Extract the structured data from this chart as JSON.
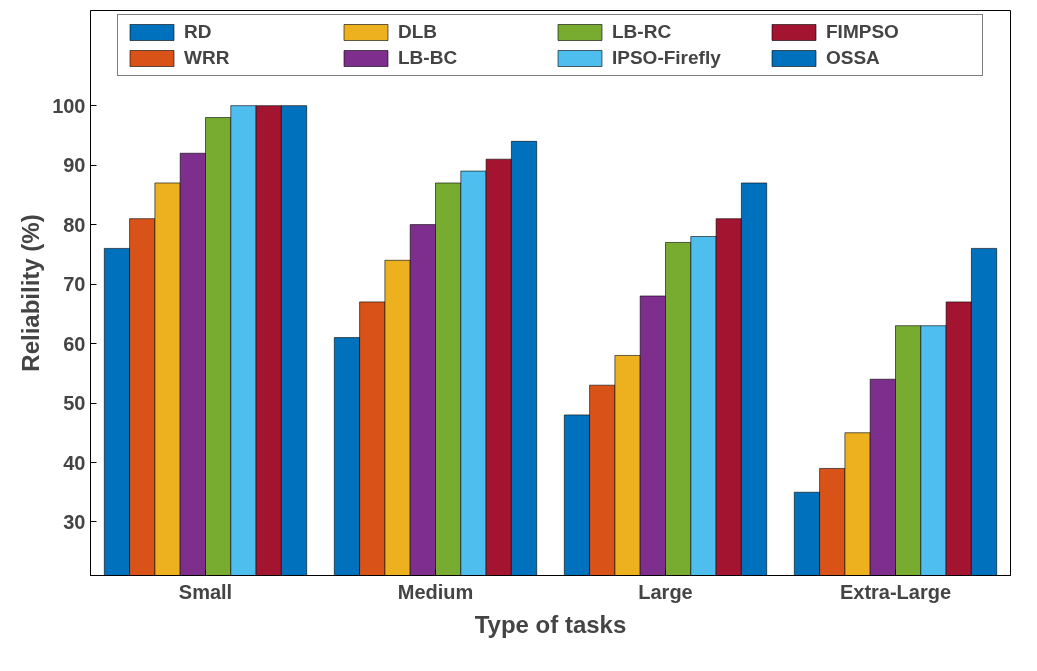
{
  "chart_data": {
    "type": "bar",
    "xlabel": "Type of tasks",
    "ylabel": "Reliability (%)",
    "categories": [
      "Small",
      "Medium",
      "Large",
      "Extra-Large"
    ],
    "series": [
      {
        "name": "RD",
        "color": "#0072bd",
        "values": [
          76,
          61,
          48,
          35
        ]
      },
      {
        "name": "WRR",
        "color": "#d95319",
        "values": [
          81,
          67,
          53,
          39
        ]
      },
      {
        "name": "DLB",
        "color": "#edb120",
        "values": [
          87,
          74,
          58,
          45
        ]
      },
      {
        "name": "LB-BC",
        "color": "#7e2f8e",
        "values": [
          92,
          80,
          68,
          54
        ]
      },
      {
        "name": "LB-RC",
        "color": "#77ac30",
        "values": [
          98,
          87,
          77,
          63
        ]
      },
      {
        "name": "IPSO-Firefly",
        "color": "#4dbeee",
        "values": [
          100,
          89,
          78,
          63
        ]
      },
      {
        "name": "FIMPSO",
        "color": "#a2142f",
        "values": [
          100,
          91,
          81,
          67
        ]
      },
      {
        "name": "OSSA",
        "color": "#0072bd",
        "values": [
          100,
          94,
          87,
          76
        ]
      }
    ],
    "ylim": [
      21,
      116
    ],
    "yticks": [
      30,
      40,
      50,
      60,
      70,
      80,
      90,
      100
    ],
    "grid": false,
    "legend": "top"
  }
}
